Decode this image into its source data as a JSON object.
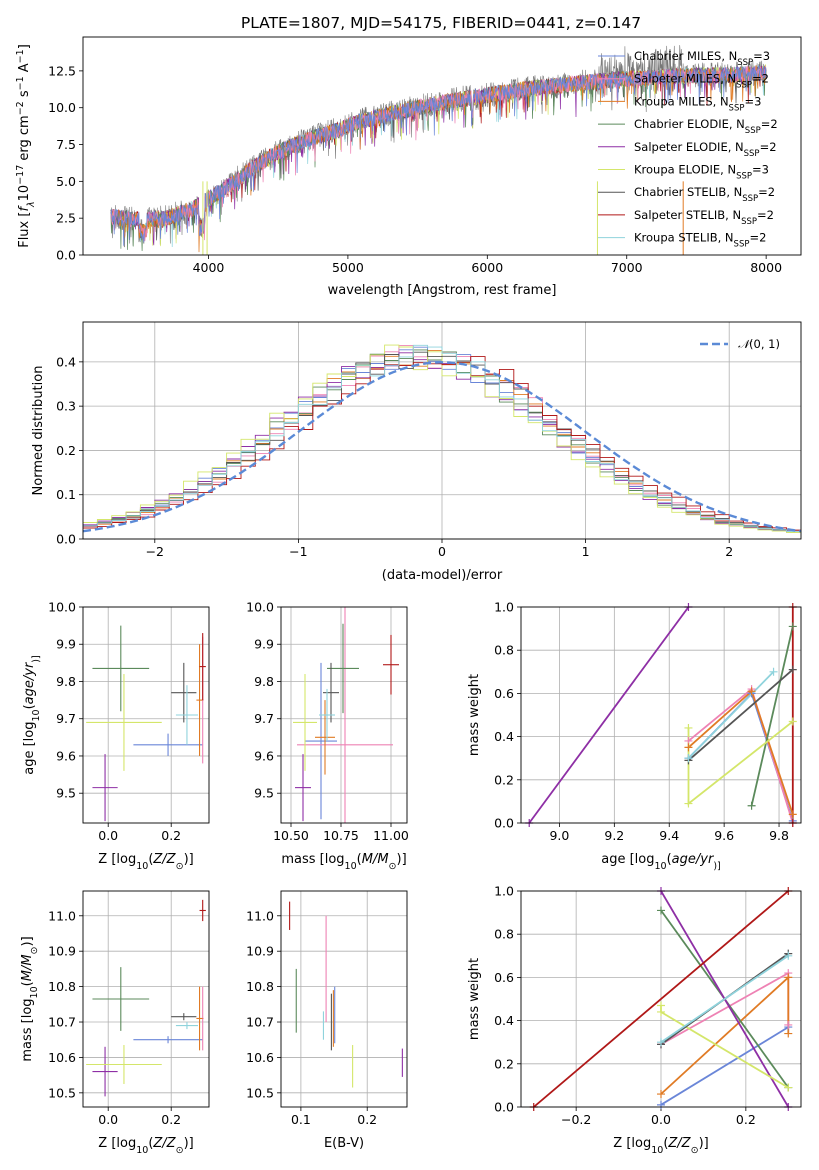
{
  "title": "PLATE=1807, MJD=54175, FIBERID=0441, z=0.147",
  "models": [
    {
      "name": "Chabrier MILES, N$_{SSP}$=3",
      "label_main": "Chabrier MILES, N",
      "label_sub": "SSP",
      "label_end": "=3",
      "color": "#6a86d8"
    },
    {
      "name": "Salpeter MILES, N$_{SSP}$=2",
      "label_main": "Salpeter MILES, N",
      "label_sub": "SSP",
      "label_end": "=2",
      "color": "#ee82b4"
    },
    {
      "name": "Kroupa MILES, N$_{SSP}$=3",
      "label_main": "Kroupa MILES, N",
      "label_sub": "SSP",
      "label_end": "=3",
      "color": "#e07b25"
    },
    {
      "name": "Chabrier ELODIE, N$_{SSP}$=2",
      "label_main": "Chabrier ELODIE, N",
      "label_sub": "SSP",
      "label_end": "=2",
      "color": "#5b8a5b"
    },
    {
      "name": "Salpeter ELODIE, N$_{SSP}$=2",
      "label_main": "Salpeter ELODIE, N",
      "label_sub": "SSP",
      "label_end": "=2",
      "color": "#8e2fa5"
    },
    {
      "name": "Kroupa ELODIE, N$_{SSP}$=3",
      "label_main": "Kroupa ELODIE, N",
      "label_sub": "SSP",
      "label_end": "=3",
      "color": "#d4e66a"
    },
    {
      "name": "Chabrier STELIB, N$_{SSP}$=2",
      "label_main": "Chabrier STELIB, N",
      "label_sub": "SSP",
      "label_end": "=2",
      "color": "#555555"
    },
    {
      "name": "Salpeter STELIB, N$_{SSP}$=2",
      "label_main": "Salpeter STELIB, N",
      "label_sub": "SSP",
      "label_end": "=2",
      "color": "#b01818"
    },
    {
      "name": "Kroupa STELIB, N$_{SSP}$=2",
      "label_main": "Kroupa STELIB, N",
      "label_sub": "SSP",
      "label_end": "=2",
      "color": "#8fd3dc"
    }
  ],
  "chart_data": [
    {
      "id": "spectrum",
      "type": "line",
      "xlabel": "wavelength [Angstrom, rest frame]",
      "ylabel_parts": [
        "Flux [",
        "f",
        "λ",
        "10",
        "−17",
        " erg cm",
        "−2",
        " s",
        "−1",
        " A",
        "−1",
        "]"
      ],
      "xlim": [
        3100,
        8250
      ],
      "ylim": [
        0,
        14.8
      ],
      "xticks": [
        4000,
        5000,
        6000,
        7000,
        8000
      ],
      "yticks": [
        0.0,
        2.5,
        5.0,
        7.5,
        10.0,
        12.5
      ],
      "grid": false,
      "legend": "top-right",
      "continuum": {
        "x": [
          3300,
          3500,
          3700,
          3900,
          4100,
          4300,
          4500,
          4700,
          4900,
          5100,
          5300,
          5500,
          5700,
          5900,
          6100,
          6300,
          6500,
          6700,
          6900,
          7100,
          7300,
          7500,
          7700,
          7900,
          8000
        ],
        "y": [
          2.6,
          2.4,
          2.5,
          3.2,
          4.4,
          5.8,
          7.0,
          7.8,
          8.4,
          9.1,
          9.6,
          10.0,
          10.4,
          10.7,
          11.0,
          11.3,
          11.5,
          11.7,
          11.9,
          12.0,
          12.1,
          12.2,
          12.2,
          12.3,
          12.4
        ]
      },
      "data_extent": [
        3300,
        8000
      ]
    },
    {
      "id": "residuals",
      "type": "bar",
      "xlabel": "(data-model)/error",
      "ylabel": "Normed distribution",
      "xlim": [
        -2.5,
        2.5
      ],
      "ylim": [
        0,
        0.49
      ],
      "xticks": [
        -2,
        -1,
        0,
        1,
        2
      ],
      "yticks": [
        0.0,
        0.1,
        0.2,
        0.3,
        0.4
      ],
      "grid": true,
      "legend": "top-right",
      "reference": {
        "name": "N(0,1)",
        "label_text": "(0, 1)",
        "label_symbol": "𝒩",
        "mean": 0,
        "sigma": 1,
        "color": "#5b8ad6"
      },
      "bin_width": 0.1,
      "bin_start": -2.5
    },
    {
      "id": "z-age",
      "type": "scatter",
      "xlabel_parts": [
        "Z [log",
        "10",
        "(",
        "Z/Z",
        "⊙",
        ")]"
      ],
      "ylabel_parts": [
        "age  [log",
        "10",
        "(",
        "age/yr",
        ")]"
      ],
      "xlim": [
        -0.08,
        0.32
      ],
      "ylim": [
        9.42,
        10.0
      ],
      "xticks": [
        0.0,
        0.2
      ],
      "yticks": [
        9.5,
        9.6,
        9.7,
        9.8,
        9.9,
        10.0
      ],
      "grid": true,
      "points": [
        {
          "model": 0,
          "x": 0.19,
          "xerr": 0.11,
          "y": 9.63,
          "yerr": 0.03
        },
        {
          "model": 1,
          "x": 0.3,
          "xerr": 0.003,
          "y": 9.75,
          "yerr": 0.17
        },
        {
          "model": 2,
          "x": 0.29,
          "xerr": 0.01,
          "y": 9.75,
          "yerr": 0.15
        },
        {
          "model": 3,
          "x": 0.04,
          "xerr": 0.09,
          "y": 9.835,
          "yerr": 0.115
        },
        {
          "model": 4,
          "x": -0.01,
          "xerr": 0.04,
          "y": 9.515,
          "yerr": 0.09
        },
        {
          "model": 5,
          "x": 0.05,
          "xerr": 0.12,
          "y": 9.69,
          "yerr": 0.13
        },
        {
          "model": 6,
          "x": 0.24,
          "xerr": 0.04,
          "y": 9.77,
          "yerr": 0.08
        },
        {
          "model": 7,
          "x": 0.3,
          "xerr": 0.01,
          "y": 9.84,
          "yerr": 0.09
        },
        {
          "model": 8,
          "x": 0.25,
          "xerr": 0.035,
          "y": 9.71,
          "yerr": 0.08
        }
      ]
    },
    {
      "id": "mass-age",
      "type": "scatter",
      "xlabel_parts": [
        "mass [log",
        "10",
        "(",
        "M/M",
        "⊙",
        ")]"
      ],
      "ylabel_parts": [],
      "xlim": [
        10.45,
        11.08
      ],
      "ylim": [
        9.42,
        10.0
      ],
      "xticks": [
        10.5,
        10.75,
        11.0
      ],
      "yticks": [
        9.5,
        9.6,
        9.7,
        9.8,
        9.9,
        10.0
      ],
      "grid": true,
      "points": [
        {
          "model": 0,
          "x": 10.65,
          "xerr": 0.08,
          "y": 9.64,
          "yerr": 0.21
        },
        {
          "model": 1,
          "x": 10.77,
          "xerr": 0.24,
          "y": 9.63,
          "yerr": 0.37
        },
        {
          "model": 2,
          "x": 10.67,
          "xerr": 0.05,
          "y": 9.65,
          "yerr": 0.1
        },
        {
          "model": 3,
          "x": 10.76,
          "xerr": 0.08,
          "y": 9.835,
          "yerr": 0.12
        },
        {
          "model": 4,
          "x": 10.56,
          "xerr": 0.04,
          "y": 9.515,
          "yerr": 0.09
        },
        {
          "model": 5,
          "x": 10.57,
          "xerr": 0.06,
          "y": 9.69,
          "yerr": 0.13
        },
        {
          "model": 6,
          "x": 10.7,
          "xerr": 0.04,
          "y": 9.77,
          "yerr": 0.08
        },
        {
          "model": 7,
          "x": 11.0,
          "xerr": 0.04,
          "y": 9.845,
          "yerr": 0.08
        },
        {
          "model": 8,
          "x": 10.68,
          "xerr": 0.04,
          "y": 9.71,
          "yerr": 0.07
        }
      ]
    },
    {
      "id": "age-weight",
      "type": "line",
      "xlabel_parts": [
        "age  [log",
        "10",
        "(",
        "age/yr",
        ")]"
      ],
      "ylabel": "mass weight",
      "xlim": [
        8.86,
        9.88
      ],
      "ylim": [
        0,
        1.0
      ],
      "xticks": [
        9.0,
        9.2,
        9.4,
        9.6,
        9.8
      ],
      "yticks": [
        0.0,
        0.2,
        0.4,
        0.6,
        0.8,
        1.0
      ],
      "grid": true,
      "series": [
        {
          "model": 0,
          "x": [
            9.47,
            9.7,
            9.85
          ],
          "y": [
            0.3,
            0.6,
            0.01
          ]
        },
        {
          "model": 1,
          "x": [
            9.47,
            9.7,
            9.85
          ],
          "y": [
            0.38,
            0.62,
            0.0
          ]
        },
        {
          "model": 2,
          "x": [
            9.47,
            9.7,
            9.85
          ],
          "y": [
            0.35,
            0.61,
            0.04
          ]
        },
        {
          "model": 3,
          "x": [
            9.7,
            9.85
          ],
          "y": [
            0.08,
            0.91
          ]
        },
        {
          "model": 4,
          "x": [
            8.89,
            9.47
          ],
          "y": [
            0.0,
            1.0
          ]
        },
        {
          "model": 5,
          "x": [
            9.47,
            9.47,
            9.85
          ],
          "y": [
            0.44,
            0.09,
            0.47
          ]
        },
        {
          "model": 6,
          "x": [
            9.47,
            9.85
          ],
          "y": [
            0.29,
            0.71
          ]
        },
        {
          "model": 7,
          "x": [
            9.85,
            9.85
          ],
          "y": [
            0.0,
            1.0
          ]
        },
        {
          "model": 8,
          "x": [
            9.47,
            9.78
          ],
          "y": [
            0.3,
            0.7
          ]
        }
      ]
    },
    {
      "id": "z-mass",
      "type": "scatter",
      "xlabel_parts": [
        "Z [log",
        "10",
        "(",
        "Z/Z",
        "⊙",
        ")]"
      ],
      "ylabel_parts": [
        "mass [log",
        "10",
        "(",
        "M/M",
        "⊙",
        ")]"
      ],
      "xlim": [
        -0.08,
        0.32
      ],
      "ylim": [
        10.46,
        11.07
      ],
      "xticks": [
        0.0,
        0.2
      ],
      "yticks": [
        10.5,
        10.6,
        10.7,
        10.8,
        10.9,
        11.0
      ],
      "grid": true,
      "points": [
        {
          "model": 0,
          "x": 0.19,
          "xerr": 0.11,
          "y": 10.65,
          "yerr": 0.01
        },
        {
          "model": 1,
          "x": 0.3,
          "xerr": 0.003,
          "y": 10.71,
          "yerr": 0.09
        },
        {
          "model": 2,
          "x": 0.29,
          "xerr": 0.01,
          "y": 10.71,
          "yerr": 0.09
        },
        {
          "model": 3,
          "x": 0.04,
          "xerr": 0.09,
          "y": 10.765,
          "yerr": 0.09
        },
        {
          "model": 4,
          "x": -0.01,
          "xerr": 0.04,
          "y": 10.56,
          "yerr": 0.07
        },
        {
          "model": 5,
          "x": 0.05,
          "xerr": 0.12,
          "y": 10.58,
          "yerr": 0.055
        },
        {
          "model": 6,
          "x": 0.24,
          "xerr": 0.04,
          "y": 10.715,
          "yerr": 0.01
        },
        {
          "model": 7,
          "x": 0.3,
          "xerr": 0.01,
          "y": 11.015,
          "yerr": 0.03
        },
        {
          "model": 8,
          "x": 0.25,
          "xerr": 0.035,
          "y": 10.69,
          "yerr": 0.01
        }
      ]
    },
    {
      "id": "ebv-mass",
      "type": "scatter",
      "xlabel": "E(B-V)",
      "ylabel_parts": [],
      "xlim": [
        0.07,
        0.26
      ],
      "ylim": [
        10.46,
        11.07
      ],
      "xticks": [
        0.1,
        0.2
      ],
      "yticks": [
        10.5,
        10.6,
        10.7,
        10.8,
        10.9,
        11.0
      ],
      "grid": true,
      "points": [
        {
          "model": 0,
          "x": 0.151,
          "y": 10.72,
          "yerr": 0.08
        },
        {
          "model": 1,
          "x": 0.138,
          "y": 10.85,
          "yerr": 0.15
        },
        {
          "model": 2,
          "x": 0.149,
          "y": 10.71,
          "yerr": 0.08
        },
        {
          "model": 3,
          "x": 0.093,
          "y": 10.76,
          "yerr": 0.09
        },
        {
          "model": 4,
          "x": 0.253,
          "y": 10.585,
          "yerr": 0.04
        },
        {
          "model": 5,
          "x": 0.178,
          "y": 10.575,
          "yerr": 0.06
        },
        {
          "model": 6,
          "x": 0.146,
          "y": 10.7,
          "yerr": 0.08
        },
        {
          "model": 7,
          "x": 0.083,
          "y": 11.0,
          "yerr": 0.04
        },
        {
          "model": 8,
          "x": 0.134,
          "y": 10.69,
          "yerr": 0.04
        }
      ]
    },
    {
      "id": "z-weight",
      "type": "line",
      "xlabel_parts": [
        "Z [log",
        "10",
        "(",
        "Z/Z",
        "⊙",
        ")]"
      ],
      "ylabel": "mass weight",
      "xlim": [
        -0.33,
        0.33
      ],
      "ylim": [
        0,
        1.0
      ],
      "xticks": [
        -0.2,
        0.0,
        0.2
      ],
      "yticks": [
        0.0,
        0.2,
        0.4,
        0.6,
        0.8,
        1.0
      ],
      "grid": true,
      "series": [
        {
          "model": 0,
          "x": [
            0.0,
            0.3
          ],
          "y": [
            0.01,
            0.37
          ]
        },
        {
          "model": 1,
          "x": [
            0.0,
            0.3,
            0.3
          ],
          "y": [
            0.29,
            0.62,
            0.38
          ]
        },
        {
          "model": 2,
          "x": [
            0.0,
            0.3,
            0.3
          ],
          "y": [
            0.06,
            0.6,
            0.34
          ]
        },
        {
          "model": 3,
          "x": [
            0.0,
            0.3
          ],
          "y": [
            0.91,
            0.09
          ]
        },
        {
          "model": 4,
          "x": [
            0.0,
            0.3
          ],
          "y": [
            1.0,
            0.0
          ]
        },
        {
          "model": 5,
          "x": [
            0.0,
            0.0,
            0.3
          ],
          "y": [
            0.47,
            0.44,
            0.09
          ]
        },
        {
          "model": 6,
          "x": [
            0.0,
            0.3
          ],
          "y": [
            0.29,
            0.71
          ]
        },
        {
          "model": 7,
          "x": [
            -0.3,
            0.3
          ],
          "y": [
            0.0,
            1.0
          ]
        },
        {
          "model": 8,
          "x": [
            0.0,
            0.3
          ],
          "y": [
            0.3,
            0.7
          ]
        }
      ]
    }
  ]
}
